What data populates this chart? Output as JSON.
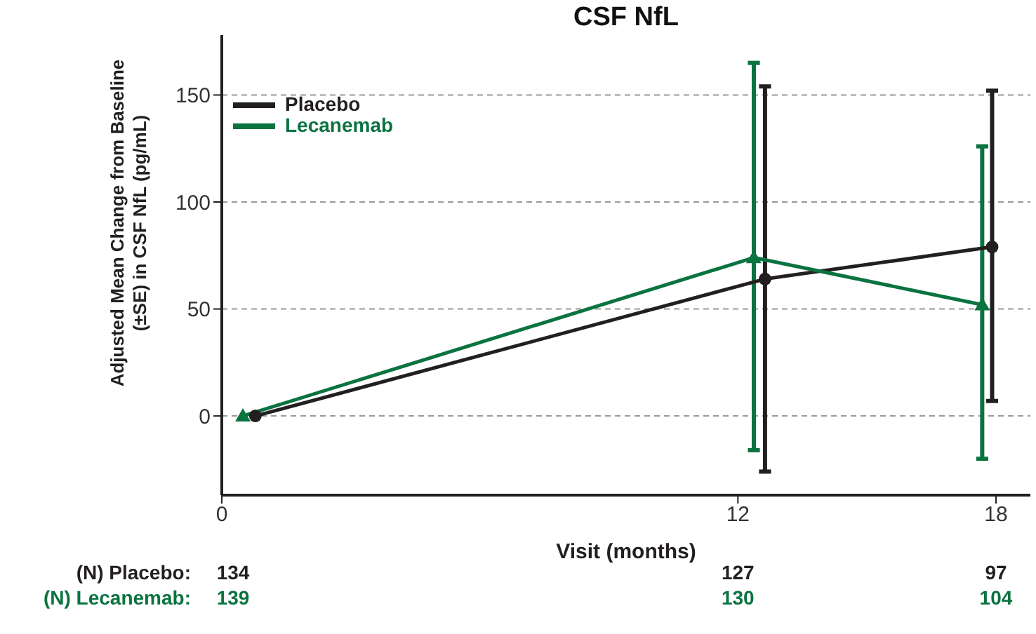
{
  "chart_data": {
    "type": "line",
    "title": "CSF NfL",
    "xlabel": "Visit (months)",
    "ylabel": "Adjusted Mean Change from Baseline (±SE) in CSF NfL (pg/mL)",
    "series": [
      {
        "name": "Placebo",
        "color": "#231f20",
        "marker": "circle",
        "x": [
          0.78,
          12.63,
          17.91
        ],
        "values": [
          0,
          64,
          79
        ],
        "errors": [
          null,
          [
            -26,
            154
          ],
          [
            7,
            152
          ]
        ]
      },
      {
        "name": "Lecanemab",
        "color": "#0b7340",
        "marker": "triangle",
        "x": [
          0.49,
          12.37,
          17.68
        ],
        "values": [
          0,
          74,
          52
        ],
        "errors": [
          null,
          [
            -16,
            165
          ],
          [
            -20,
            126
          ]
        ]
      }
    ],
    "xlim": [
      0,
      18.8
    ],
    "xticks": [
      0,
      12,
      18
    ],
    "ylim": [
      -37,
      178
    ],
    "yticks": [
      0,
      50,
      100,
      150
    ],
    "grid": "y",
    "legend": "top left",
    "line_style": "solid",
    "annotations": [
      "(N) Placebo:",
      "134",
      "127",
      "97",
      "(N) Lecanemab:",
      "139",
      "130",
      "104"
    ]
  }
}
